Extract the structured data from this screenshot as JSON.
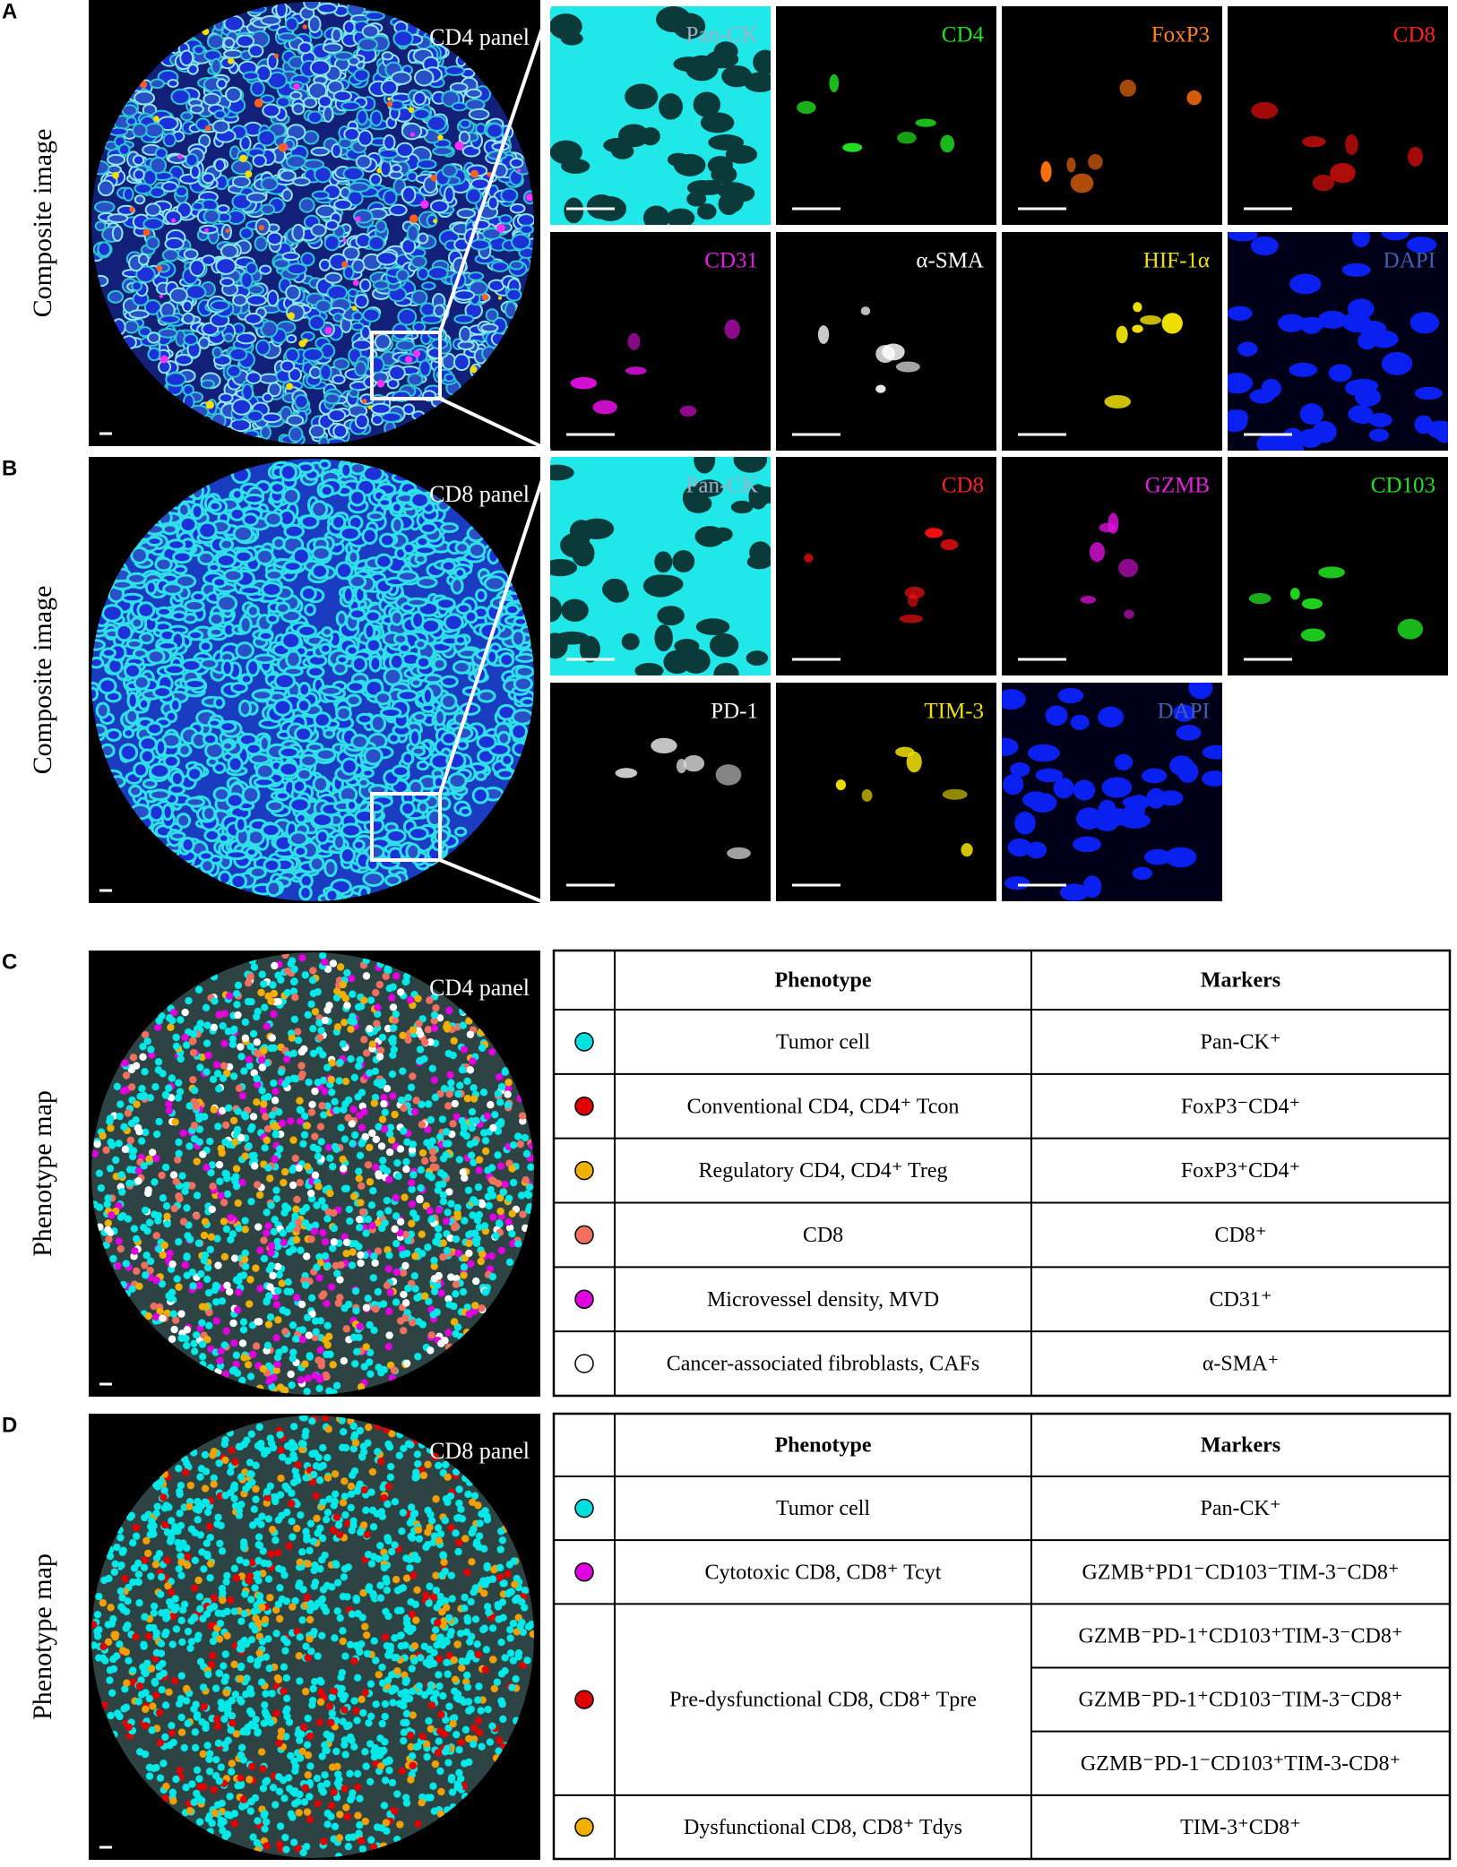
{
  "panels": [
    {
      "letter": "A",
      "image": {
        "label": "CD4 panel",
        "axis_label": "Composite image"
      },
      "markers": [
        "Pan-CK",
        "CD4",
        "FoxP3",
        "CD8",
        "CD31",
        "α-SMA",
        "HIF-1α",
        "DAPI"
      ]
    },
    {
      "letter": "B",
      "image": {
        "label": "CD8 panel",
        "axis_label": "Composite image"
      },
      "markers": [
        "Pan-CK",
        "CD8",
        "GZMB",
        "CD103",
        "PD-1",
        "TIM-3",
        "DAPI"
      ]
    },
    {
      "letter": "C",
      "image": {
        "label": "CD4 panel",
        "axis_label": "Phenotype map"
      },
      "table": {
        "header": [
          "Phenotype",
          "Markers"
        ],
        "rows": [
          {
            "color": "#00e0e0",
            "phenotype": "Tumor cell",
            "markers": [
              "Pan-CK⁺"
            ]
          },
          {
            "color": "#e00000",
            "phenotype": "Conventional CD4, CD4⁺ Tcon",
            "markers": [
              "FoxP3⁻CD4⁺"
            ]
          },
          {
            "color": "#f0b000",
            "phenotype": "Regulatory CD4, CD4⁺ Treg",
            "markers": [
              "FoxP3⁺CD4⁺"
            ]
          },
          {
            "color": "#f07060",
            "phenotype": "CD8",
            "markers": [
              "CD8⁺"
            ]
          },
          {
            "color": "#e000e0",
            "phenotype": "Microvessel density, MVD",
            "markers": [
              "CD31⁺"
            ]
          },
          {
            "color": "#ffffff",
            "phenotype": "Cancer-associated fibroblasts, CAFs",
            "markers": [
              "α-SMA⁺"
            ]
          }
        ]
      }
    },
    {
      "letter": "D",
      "image": {
        "label": "CD8 panel",
        "axis_label": "Phenotype map"
      },
      "table": {
        "header": [
          "Phenotype",
          "Markers"
        ],
        "rows": [
          {
            "color": "#00e0e0",
            "phenotype": "Tumor cell",
            "markers": [
              "Pan-CK⁺"
            ]
          },
          {
            "color": "#e000e0",
            "phenotype": "Cytotoxic CD8, CD8⁺ Tcyt",
            "markers": [
              "GZMB⁺PD1⁻CD103⁻TIM-3⁻CD8⁺"
            ]
          },
          {
            "color": "#e00000",
            "phenotype": "Pre-dysfunctional CD8, CD8⁺ Tpre",
            "markers": [
              "GZMB⁻PD-1⁺CD103⁺TIM-3⁻CD8⁺",
              "GZMB⁻PD-1⁺CD103⁻TIM-3⁻CD8⁺",
              "GZMB⁻PD-1⁻CD103⁺TIM-3-CD8⁺"
            ]
          },
          {
            "color": "#f0b000",
            "phenotype": "Dysfunctional CD8, CD8⁺ Tdys",
            "markers": [
              "TIM-3⁺CD8⁺"
            ]
          }
        ]
      }
    }
  ]
}
